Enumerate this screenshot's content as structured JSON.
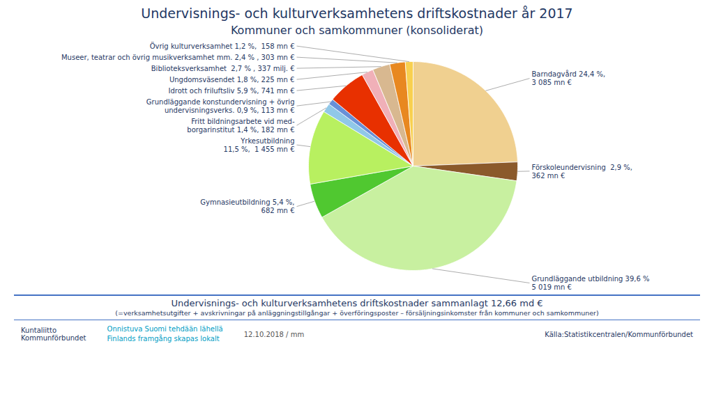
{
  "chart_data": {
    "type": "pie",
    "title": "Undervisnings- och kulturverksamhetens driftskostnader år 2017",
    "subtitle": "Kommuner och samkommuner (konsoliderat)",
    "values": [
      24.4,
      2.9,
      39.6,
      5.4,
      11.5,
      1.4,
      0.9,
      5.9,
      1.8,
      2.7,
      2.4,
      1.2
    ],
    "colors": [
      "#F0D090",
      "#8B5A2B",
      "#C8F0A0",
      "#50C830",
      "#B8F060",
      "#90C8E8",
      "#6890D8",
      "#E83000",
      "#F0B0B8",
      "#D8B890",
      "#E88820",
      "#F8D050"
    ],
    "value_labels": [
      "Barndagvård 24,4 %,\n3 085 mn €",
      "Förskoleundervisning  2,9 %,\n362 mn €",
      "Grundläggande utbildning 39,6 %\n5 019 mn €",
      "Gymnasieutbildning 5,4 %,\n682 mn €",
      "Yrkesutbildning\n11,5 %,  1 455 mn €",
      "Fritt bildningsarbete vid med-\nborgarinstitut 1,4 %, 182 mn €",
      "Grundläggande konstundervisning + övrig\nundervisningsverks. 0,9 %, 113 mn €",
      "Idrott och friluftsliv 5,9 %, 741 mn €",
      "Ungdomsväsendet 1,8 %, 225 mn €",
      "Biblioteksverksamhet  2,7 % , 337 milj. €",
      "Museer, teatrar och övrig musikverksamhet mm. 2,4 % , 303 mn €",
      "Övrig kulturverksamhet 1,2 %,  158 mn €"
    ],
    "data_labels": true,
    "annotations": [
      "Undervisnings- och kulturverksamhetens driftskostnader sammanlagt 12,66 md €",
      "(=verksamhetsutgifter + avskrivningar på anläggningstillgångar + överföringsposter – försäljningsinkomster från kommuner och samkommuner)",
      "Kuntaliitto\nKommunförbundet",
      "Onnistuva Suomi tehdään lähellä",
      "Finlands framgång skapas lokalt",
      "12.10.2018 / mm",
      "Källa:Statistikcentralen/Kommunförbundet"
    ]
  }
}
